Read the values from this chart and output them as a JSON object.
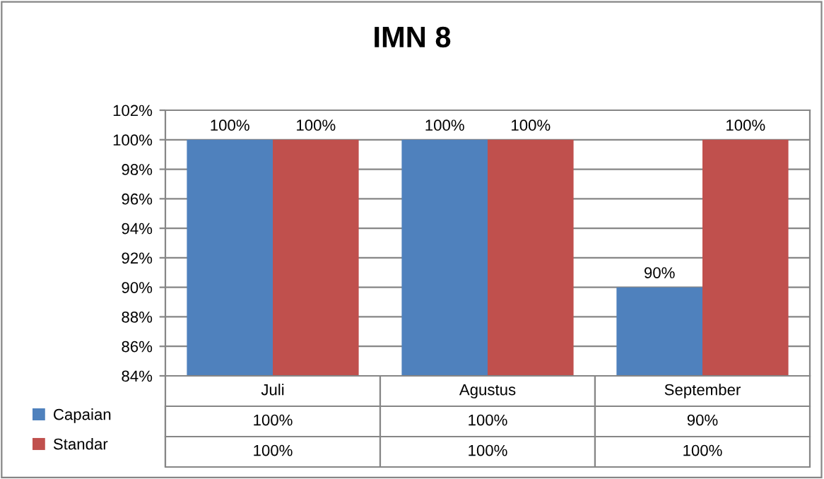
{
  "chart_data": {
    "type": "bar",
    "title": "IMN 8",
    "categories": [
      "Juli",
      "Agustus",
      "September"
    ],
    "series": [
      {
        "name": "Capaian",
        "color": "#4f81bd",
        "values": [
          100,
          100,
          90
        ],
        "value_labels": [
          "100%",
          "100%",
          "90%"
        ]
      },
      {
        "name": "Standar",
        "color": "#c0504d",
        "values": [
          100,
          100,
          100
        ],
        "value_labels": [
          "100%",
          "100%",
          "100%"
        ]
      }
    ],
    "ylim": [
      84,
      102
    ],
    "yticks": [
      {
        "value": 84,
        "label": "84%"
      },
      {
        "value": 86,
        "label": "86%"
      },
      {
        "value": 88,
        "label": "88%"
      },
      {
        "value": 90,
        "label": "90%"
      },
      {
        "value": 92,
        "label": "92%"
      },
      {
        "value": 94,
        "label": "94%"
      },
      {
        "value": 96,
        "label": "96%"
      },
      {
        "value": 98,
        "label": "98%"
      },
      {
        "value": 100,
        "label": "100%"
      },
      {
        "value": 102,
        "label": "102%"
      }
    ],
    "grid": "y",
    "legend": "bottom"
  }
}
